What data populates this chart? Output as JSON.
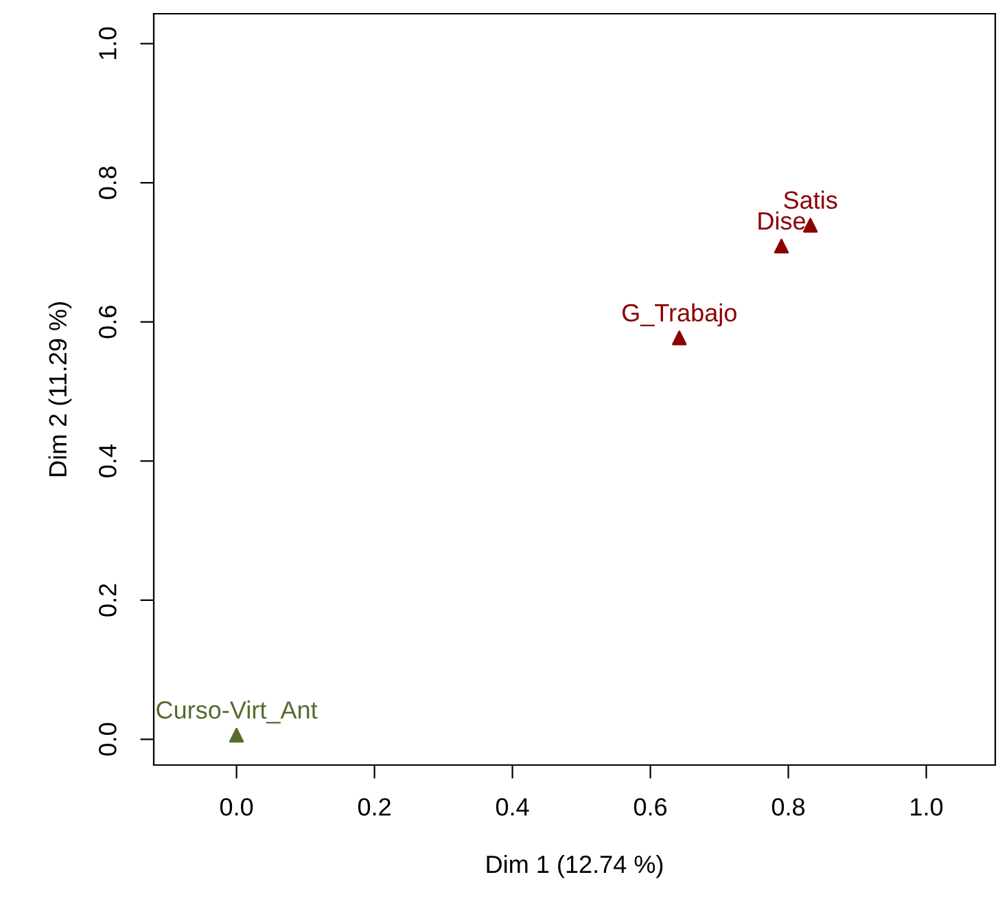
{
  "chart_data": {
    "type": "scatter",
    "xlabel": "Dim 1 (12.74 %)",
    "ylabel": "Dim 2 (11.29 %)",
    "x": [
      0.0,
      0.642,
      0.79,
      0.832
    ],
    "values": [
      0.006,
      0.577,
      0.709,
      0.739
    ],
    "colors": [
      "#556b2f",
      "#8b0000",
      "#8b0000",
      "#8b0000"
    ],
    "marker": "triangle",
    "annotations": [
      {
        "text": "Curso-Virt_Ant",
        "x": 0.0,
        "y": 0.006
      },
      {
        "text": "G_Trabajo",
        "x": 0.642,
        "y": 0.577
      },
      {
        "text": "Dise",
        "x": 0.79,
        "y": 0.709
      },
      {
        "text": "Satis",
        "x": 0.832,
        "y": 0.739
      }
    ],
    "xlim": [
      -0.12,
      1.1
    ],
    "ylim": [
      -0.037,
      1.043
    ],
    "xticks": [
      {
        "value": 0,
        "label": "0.0"
      },
      {
        "value": 0.2,
        "label": "0.2"
      },
      {
        "value": 0.4,
        "label": "0.4"
      },
      {
        "value": 0.6,
        "label": "0.6"
      },
      {
        "value": 0.8,
        "label": "0.8"
      },
      {
        "value": 1,
        "label": "1.0"
      }
    ],
    "yticks": [
      {
        "value": 0,
        "label": "0.0"
      },
      {
        "value": 0.2,
        "label": "0.2"
      },
      {
        "value": 0.4,
        "label": "0.4"
      },
      {
        "value": 0.6,
        "label": "0.6"
      },
      {
        "value": 0.8,
        "label": "0.8"
      },
      {
        "value": 1,
        "label": "1.0"
      }
    ],
    "grid": false,
    "legend": false
  }
}
